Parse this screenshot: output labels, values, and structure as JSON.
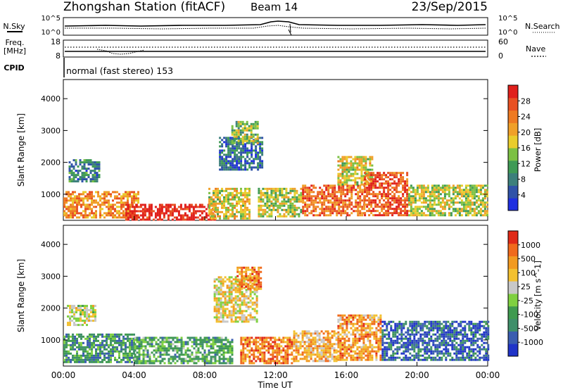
{
  "header": {
    "title": "Zhongshan Station (fitACF)",
    "beam": "Beam 14",
    "date": "23/Sep/2015"
  },
  "noise_panel": {
    "left_label": "N.Sky",
    "right_label": "N.Search",
    "left_ticks": [
      "10^5",
      "10^0"
    ],
    "right_ticks": [
      "10^5",
      "10^0"
    ]
  },
  "freq_panel": {
    "left_label_1": "Freq.",
    "left_label_2": "[MHz]",
    "right_label": "Nave",
    "left_ticks": [
      "18",
      "8"
    ],
    "right_ticks": [
      "60",
      "0"
    ]
  },
  "cpid": {
    "label": "CPID",
    "mode_text": "normal (fast stereo) 153"
  },
  "x_axis": {
    "label": "Time UT",
    "ticks": [
      "00:00",
      "04:00",
      "08:00",
      "12:00",
      "16:00",
      "20:00",
      "00:00"
    ]
  },
  "chart_data": [
    {
      "type": "heatmap",
      "name": "power",
      "ylabel": "Slant Range [km]",
      "yticks": [
        1000,
        2000,
        3000,
        4000
      ],
      "ylim": [
        180,
        4600
      ],
      "xlim_hours": [
        0,
        24
      ],
      "colorbar": {
        "label": "Power [dB]",
        "ticks": [
          "4",
          "8",
          "12",
          "16",
          "20",
          "24",
          "28"
        ],
        "colors": [
          "#1f2fe0",
          "#2f52a8",
          "#3c7f7b",
          "#3f9a55",
          "#7cc043",
          "#e9cc2c",
          "#f0a028",
          "#ee7a22",
          "#e85022",
          "#e0201c"
        ]
      },
      "regions": [
        {
          "t0": 0.0,
          "t1": 4.2,
          "r0": 250,
          "r1": 1100,
          "val": 0.72
        },
        {
          "t0": 0.3,
          "t1": 2.0,
          "r0": 1400,
          "r1": 2100,
          "val": 0.25
        },
        {
          "t0": 3.5,
          "t1": 8.6,
          "r0": 230,
          "r1": 700,
          "val": 0.97
        },
        {
          "t0": 8.2,
          "t1": 10.5,
          "r0": 250,
          "r1": 1200,
          "val": 0.55
        },
        {
          "t0": 8.8,
          "t1": 11.2,
          "r0": 1800,
          "r1": 2800,
          "val": 0.2
        },
        {
          "t0": 9.5,
          "t1": 11.0,
          "r0": 2600,
          "r1": 3300,
          "val": 0.45
        },
        {
          "t0": 11.0,
          "t1": 13.5,
          "r0": 300,
          "r1": 1200,
          "val": 0.5
        },
        {
          "t0": 13.5,
          "t1": 17.0,
          "r0": 350,
          "r1": 1300,
          "val": 0.78
        },
        {
          "t0": 15.5,
          "t1": 17.5,
          "r0": 1300,
          "r1": 2200,
          "val": 0.55
        },
        {
          "t0": 17.0,
          "t1": 19.5,
          "r0": 350,
          "r1": 1700,
          "val": 0.85
        },
        {
          "t0": 19.5,
          "t1": 24.0,
          "r0": 350,
          "r1": 1300,
          "val": 0.5
        }
      ]
    },
    {
      "type": "heatmap",
      "name": "velocity",
      "ylabel": "Slant Range [km]",
      "yticks": [
        1000,
        2000,
        3000,
        4000
      ],
      "ylim": [
        180,
        4600
      ],
      "xlim_hours": [
        0,
        24
      ],
      "colorbar": {
        "label": "Velocity [m s^-1]",
        "ticks": [
          "1000",
          "500",
          "100",
          "25",
          "-25",
          "-100",
          "-500",
          "-1000"
        ],
        "colors": [
          "#2034c8",
          "#3a5db0",
          "#3f8f6a",
          "#3f9a4f",
          "#7fd040",
          "#c8c8c8",
          "#f2c030",
          "#f29a20",
          "#f06a1c",
          "#e02a18"
        ]
      },
      "regions": [
        {
          "t0": 0.0,
          "t1": 4.0,
          "r0": 300,
          "r1": 1200,
          "val": 0.3
        },
        {
          "t0": 0.2,
          "t1": 1.8,
          "r0": 1500,
          "r1": 2100,
          "val": 0.55
        },
        {
          "t0": 4.0,
          "t1": 9.5,
          "r0": 300,
          "r1": 1100,
          "val": 0.35
        },
        {
          "t0": 8.5,
          "t1": 11.0,
          "r0": 1600,
          "r1": 3000,
          "val": 0.6
        },
        {
          "t0": 9.8,
          "t1": 11.2,
          "r0": 2600,
          "r1": 3300,
          "val": 0.78
        },
        {
          "t0": 10.0,
          "t1": 13.0,
          "r0": 300,
          "r1": 1100,
          "val": 0.8
        },
        {
          "t0": 13.0,
          "t1": 15.5,
          "r0": 350,
          "r1": 1300,
          "val": 0.7
        },
        {
          "t0": 15.5,
          "t1": 18.0,
          "r0": 400,
          "r1": 1800,
          "val": 0.75
        },
        {
          "t0": 18.0,
          "t1": 24.0,
          "r0": 400,
          "r1": 1600,
          "val": 0.15
        }
      ]
    }
  ]
}
